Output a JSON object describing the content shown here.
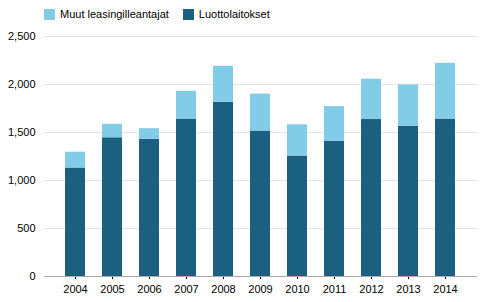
{
  "chart_data": {
    "type": "bar",
    "stacked": true,
    "categories": [
      "2004",
      "2005",
      "2006",
      "2007",
      "2008",
      "2009",
      "2010",
      "2011",
      "2012",
      "2013",
      "2014"
    ],
    "series": [
      {
        "name": "Luottolaitokset",
        "color": "#1b6080",
        "values": [
          1130,
          1445,
          1430,
          1640,
          1815,
          1515,
          1255,
          1410,
          1635,
          1565,
          1640
        ]
      },
      {
        "name": "Muut leasingilleantajat",
        "color": "#82cce8",
        "values": [
          165,
          140,
          110,
          290,
          375,
          385,
          325,
          360,
          420,
          430,
          580
        ]
      }
    ],
    "ylim": [
      0,
      2500
    ],
    "yticks": [
      0,
      500,
      1000,
      1500,
      2000,
      2500
    ],
    "grid": true,
    "legend": "upper left"
  }
}
